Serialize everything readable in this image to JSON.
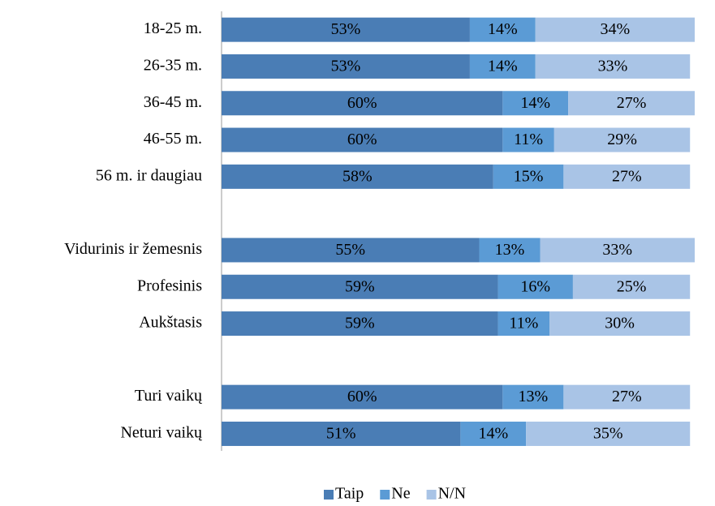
{
  "chart_data": {
    "type": "stacked-bar-horizontal",
    "categories": [
      "18-25 m.",
      "26-35 m.",
      "36-45 m.",
      "46-55 m.",
      "56 m. ir daugiau",
      null,
      "Vidurinis ir žemesnis",
      "Profesinis",
      "Aukštasis",
      null,
      "Turi vaikų",
      "Neturi vaikų"
    ],
    "series": [
      {
        "name": "Taip",
        "color": "#4a7db5",
        "values": [
          53,
          53,
          60,
          60,
          58,
          null,
          55,
          59,
          59,
          null,
          60,
          51
        ],
        "value_labels": [
          "53%",
          "53%",
          "60%",
          "60%",
          "58%",
          null,
          "55%",
          "59%",
          "59%",
          null,
          "60%",
          "51%"
        ]
      },
      {
        "name": "Ne",
        "color": "#5b9bd5",
        "values": [
          14,
          14,
          14,
          11,
          15,
          null,
          13,
          16,
          11,
          null,
          13,
          14
        ],
        "value_labels": [
          "14%",
          "14%",
          "14%",
          "11%",
          "15%",
          null,
          "13%",
          "16%",
          "11%",
          null,
          "13%",
          "14%"
        ]
      },
      {
        "name": "N/N",
        "color": "#a9c4e6",
        "values": [
          34,
          33,
          27,
          29,
          27,
          null,
          33,
          25,
          30,
          null,
          27,
          35
        ],
        "value_labels": [
          "34%",
          "33%",
          "27%",
          "29%",
          "27%",
          null,
          "33%",
          "25%",
          "30%",
          null,
          "27%",
          "35%"
        ]
      }
    ],
    "xlim": [
      0,
      101
    ],
    "legend": "bottom"
  }
}
